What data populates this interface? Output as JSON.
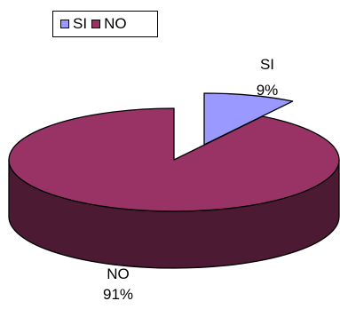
{
  "chart_data": {
    "type": "pie",
    "exploded_3d": true,
    "categories": [
      "SI",
      "NO"
    ],
    "values": [
      9,
      91
    ],
    "labels": [
      "9%",
      "91%"
    ],
    "colors": {
      "SI": "#9999ff",
      "SI_side": "#4b4b87",
      "NO": "#993366",
      "NO_side": "#4d1a33",
      "edge": "#000000"
    },
    "legend": {
      "position": "top-left",
      "entries": [
        "SI",
        "NO"
      ]
    },
    "title": "",
    "xlabel": "",
    "ylabel": ""
  }
}
